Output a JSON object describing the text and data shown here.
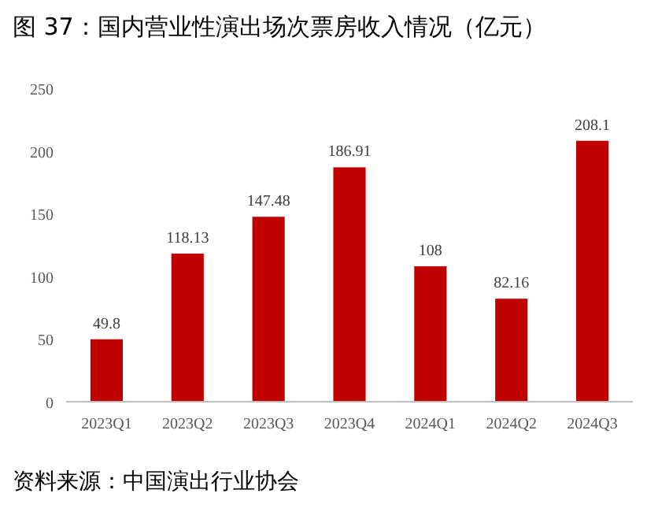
{
  "chart_data": {
    "type": "bar",
    "title": "图 37：国内营业性演出场次票房收入情况（亿元）",
    "categories": [
      "2023Q1",
      "2023Q2",
      "2023Q3",
      "2023Q4",
      "2024Q1",
      "2024Q2",
      "2024Q3"
    ],
    "values": [
      49.8,
      118.13,
      147.48,
      186.91,
      108,
      82.16,
      208.1
    ],
    "value_labels": [
      "49.8",
      "118.13",
      "147.48",
      "186.91",
      "108",
      "82.16",
      "208.1"
    ],
    "color": "#c00000",
    "ylim": [
      0,
      250
    ],
    "yticks": [
      0,
      50,
      100,
      150,
      200,
      250
    ],
    "grid": false,
    "annotations": [
      "资料来源：中国演出行业协会"
    ]
  }
}
